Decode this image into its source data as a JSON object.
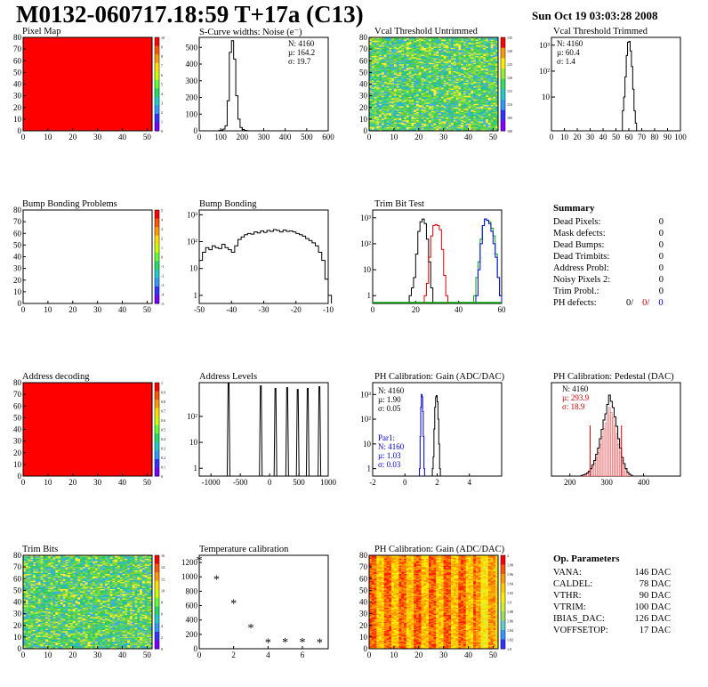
{
  "header": {
    "title": "M0132-060717.18:59 T+17a (C13)",
    "date": "Sun Oct 19 03:03:28 2008"
  },
  "panels": {
    "pixel_map": {
      "title": "Pixel Map"
    },
    "scurve": {
      "title": "S-Curve widths: Noise (e⁻)",
      "stats": [
        "N: 4160",
        "µ: 164.2",
        "σ: 19.7"
      ]
    },
    "vcal_untrimmed": {
      "title": "Vcal Threshold Untrimmed"
    },
    "vcal_trimmed": {
      "title": "Vcal Threshold Trimmed",
      "stats": [
        "N: 4160",
        "µ: 60.4",
        "σ:  1.4"
      ]
    },
    "bump_problems": {
      "title": "Bump Bonding Problems"
    },
    "bump_bonding": {
      "title": "Bump Bonding"
    },
    "trim_bit_test": {
      "title": "Trim Bit Test"
    },
    "summary": {
      "title": "Summary",
      "rows": [
        {
          "label": "Dead Pixels:",
          "value": "0"
        },
        {
          "label": "Mask defects:",
          "value": "0"
        },
        {
          "label": "Dead Bumps:",
          "value": "0"
        },
        {
          "label": "Dead Trimbits:",
          "value": "0"
        },
        {
          "label": "Address Probl:",
          "value": "0"
        },
        {
          "label": "Noisy Pixels 2:",
          "value": "0"
        },
        {
          "label": "Trim Probl.:",
          "value": "0"
        }
      ],
      "ph_label": "PH defects:",
      "ph_values": [
        "0/",
        "0/",
        "0"
      ],
      "ph_colors": [
        "#000000",
        "#cc0000",
        "#0000cc"
      ]
    },
    "address_decoding": {
      "title": "Address decoding"
    },
    "address_levels": {
      "title": "Address Levels"
    },
    "ph_gain": {
      "title": "PH Calibration: Gain (ADC/DAC)",
      "stats": [
        "N: 4160",
        "µ: 1.90",
        "σ: 0.05"
      ],
      "par_stats": [
        "Par1:",
        "N: 4160",
        "µ: 1.03",
        "σ: 0.03"
      ]
    },
    "ph_pedestal": {
      "title": "PH Calibration: Pedestal (DAC)",
      "stats": [
        "N: 4160",
        "µ: 293.9",
        "σ: 18.9"
      ]
    },
    "trim_bits": {
      "title": "Trim Bits"
    },
    "temperature": {
      "title": "Temperature calibration"
    },
    "ph_gain_map": {
      "title": "PH Calibration: Gain (ADC/DAC)"
    },
    "op_params": {
      "title": "Op. Parameters",
      "rows": [
        {
          "label": "VANA:",
          "value": "146 DAC"
        },
        {
          "label": "CALDEL:",
          "value": "78 DAC"
        },
        {
          "label": "VTHR:",
          "value": "90 DAC"
        },
        {
          "label": "VTRIM:",
          "value": "100 DAC"
        },
        {
          "label": "IBIAS_DAC:",
          "value": "126 DAC"
        },
        {
          "label": "VOFFSETOP:",
          "value": "17 DAC"
        }
      ]
    }
  },
  "chart_data": [
    {
      "id": "pixel_map",
      "type": "heatmap",
      "title": "Pixel Map",
      "xlim": [
        0,
        52
      ],
      "ylim": [
        0,
        80
      ],
      "xticks": [
        0,
        10,
        20,
        30,
        40,
        50
      ],
      "yticks": [
        0,
        10,
        20,
        30,
        40,
        50,
        60,
        70,
        80
      ],
      "fill": "uniform",
      "fill_color": "#ff0000",
      "palette_ticks": [
        "10",
        "9",
        "8",
        "7",
        "6",
        "5",
        "4",
        "3",
        "2",
        "1",
        "0"
      ]
    },
    {
      "id": "scurve",
      "type": "bar",
      "title": "S-Curve widths: Noise (e⁻)",
      "xlim": [
        0,
        600
      ],
      "ylim": [
        0,
        560
      ],
      "xticks": [
        0,
        100,
        200,
        300,
        400,
        500,
        600
      ],
      "yticks": [
        0,
        100,
        200,
        300,
        400,
        500
      ],
      "hist": {
        "x0": 90,
        "width": 10,
        "values": [
          2,
          4,
          10,
          30,
          180,
          470,
          540,
          430,
          210,
          70,
          20,
          8,
          3,
          1
        ]
      }
    },
    {
      "id": "vcal_untrimmed",
      "type": "heatmap",
      "title": "Vcal Threshold Untrimmed",
      "xlim": [
        0,
        52
      ],
      "ylim": [
        0,
        80
      ],
      "xticks": [
        0,
        10,
        20,
        30,
        40,
        50
      ],
      "yticks": [
        0,
        10,
        20,
        30,
        40,
        50,
        60,
        70,
        80
      ],
      "fill": "noise",
      "palette": [
        "#33cc55",
        "#55dd66",
        "#22bbbb",
        "#44aaee",
        "#ffee33",
        "#99dd33",
        "#66cc44"
      ],
      "palette_ticks": [
        "135",
        "130",
        "125",
        "120",
        "115",
        "110",
        "105",
        "100"
      ]
    },
    {
      "id": "vcal_trimmed",
      "type": "bar",
      "title": "Vcal Threshold Trimmed",
      "log": true,
      "xlim": [
        0,
        100
      ],
      "ylim": [
        0.5,
        2000
      ],
      "xticks": [
        0,
        10,
        20,
        30,
        40,
        50,
        60,
        70,
        80,
        90,
        100
      ],
      "yticks": [
        "10",
        "10²",
        "10³"
      ],
      "hist": {
        "x0": 55,
        "width": 1,
        "values": [
          3,
          10,
          60,
          400,
          1300,
          1400,
          600,
          150,
          20,
          3,
          1
        ]
      }
    },
    {
      "id": "bump_problems",
      "type": "heatmap",
      "title": "Bump Bonding Problems",
      "xlim": [
        0,
        52
      ],
      "ylim": [
        0,
        80
      ],
      "xticks": [
        0,
        10,
        20,
        30,
        40,
        50
      ],
      "yticks": [
        0,
        10,
        20,
        30,
        40,
        50,
        60,
        70,
        80
      ],
      "fill": "empty",
      "palette_ticks": [
        "5",
        "4",
        "3",
        "2",
        "1",
        "0",
        "-1",
        "-2",
        "-3",
        "-4",
        "-5"
      ]
    },
    {
      "id": "bump_bonding",
      "type": "bar",
      "title": "Bump Bonding",
      "log": true,
      "xlim": [
        -50,
        -10
      ],
      "ylim": [
        0.5,
        1500
      ],
      "xticks": [
        -50,
        -40,
        -30,
        -20,
        -10
      ],
      "yticks": [
        "1",
        "10",
        "10²",
        "10³"
      ],
      "hist": {
        "x0": -50,
        "width": 1,
        "values": [
          20,
          40,
          60,
          50,
          70,
          60,
          55,
          80,
          60,
          50,
          40,
          70,
          120,
          150,
          180,
          200,
          190,
          230,
          210,
          250,
          220,
          260,
          240,
          280,
          260,
          230,
          270,
          240,
          250,
          230,
          200,
          180,
          160,
          130,
          110,
          90,
          70,
          40,
          20,
          4,
          1
        ]
      }
    },
    {
      "id": "trim_bit_test",
      "type": "bar",
      "title": "Trim Bit Test",
      "log": true,
      "xlim": [
        0,
        60
      ],
      "ylim": [
        0.5,
        2000
      ],
      "xticks": [
        0,
        20,
        40,
        60
      ],
      "yticks": [
        "1",
        "10",
        "10²",
        "10³"
      ],
      "series": [
        {
          "name": "",
          "color": "#000000",
          "x0": 17,
          "width": 1,
          "values": [
            1,
            2,
            5,
            40,
            300,
            700,
            900,
            600,
            150,
            20,
            2
          ]
        },
        {
          "name": "",
          "color": "#dd0000",
          "x0": 24,
          "width": 1,
          "values": [
            1,
            3,
            30,
            200,
            500,
            550,
            500,
            350,
            60,
            6,
            1
          ]
        },
        {
          "name": "",
          "color": "#00aa00",
          "x0": 47,
          "width": 1,
          "values": [
            1,
            5,
            20,
            150,
            500,
            900,
            800,
            700,
            400,
            200,
            40,
            5,
            1
          ]
        },
        {
          "name": "",
          "color": "#0000dd",
          "x0": 48,
          "width": 1,
          "values": [
            1,
            10,
            100,
            500,
            900,
            800,
            600,
            300,
            100,
            30,
            5,
            1
          ]
        }
      ],
      "baseline": "#00aa00"
    },
    {
      "id": "address_decoding",
      "type": "heatmap",
      "title": "Address decoding",
      "xlim": [
        0,
        52
      ],
      "ylim": [
        0,
        80
      ],
      "xticks": [
        0,
        10,
        20,
        30,
        40,
        50
      ],
      "yticks": [
        0,
        10,
        20,
        30,
        40,
        50,
        60,
        70,
        80
      ],
      "fill": "uniform",
      "fill_color": "#ff0000",
      "palette_ticks": [
        "1",
        "0.9",
        "0.8",
        "0.7",
        "0.6",
        "0.5",
        "0.4",
        "0.3",
        "0.2",
        "0.1",
        "0"
      ]
    },
    {
      "id": "address_levels",
      "type": "bar",
      "title": "Address Levels",
      "log": true,
      "xlim": [
        -1200,
        1000
      ],
      "ylim": [
        0.5,
        2000
      ],
      "xticks": [
        -1000,
        -500,
        0,
        500,
        1000
      ],
      "yticks": [
        "1",
        "10",
        "10²"
      ],
      "spikes": [
        {
          "x": -700,
          "height": 2000
        },
        {
          "x": -150,
          "height": 1500
        },
        {
          "x": 100,
          "height": 1200
        },
        {
          "x": 300,
          "height": 1300
        },
        {
          "x": 480,
          "height": 1100
        },
        {
          "x": 650,
          "height": 1200
        },
        {
          "x": 850,
          "height": 1400
        }
      ]
    },
    {
      "id": "ph_gain",
      "type": "bar",
      "title": "PH Calibration: Gain (ADC/DAC)",
      "log": true,
      "xlim": [
        -2,
        6
      ],
      "ylim": [
        0.5,
        3000
      ],
      "xticks": [
        -2,
        0,
        2,
        4
      ],
      "yticks": [
        "1",
        "10",
        "10²",
        "10³"
      ],
      "series": [
        {
          "name": "",
          "color": "#000000",
          "x0": 1.7,
          "width": 0.05,
          "values": [
            1,
            3,
            40,
            300,
            800,
            900,
            500,
            100,
            10,
            1
          ]
        },
        {
          "name": "Par1",
          "color": "#0000cc",
          "x0": 0.9,
          "width": 0.04,
          "values": [
            1,
            20,
            300,
            1000,
            800,
            200,
            20,
            1
          ]
        }
      ]
    },
    {
      "id": "ph_pedestal",
      "type": "bar",
      "title": "PH Calibration: Pedestal (DAC)",
      "xlim": [
        150,
        500
      ],
      "ylim": [
        0,
        150
      ],
      "xticks": [
        200,
        300,
        400
      ],
      "yticks": [],
      "hist": {
        "x0": 230,
        "width": 5,
        "values": [
          1,
          2,
          3,
          5,
          8,
          12,
          18,
          25,
          35,
          45,
          60,
          75,
          90,
          100,
          115,
          130,
          120,
          110,
          95,
          80,
          60,
          45,
          30,
          20,
          12,
          6,
          3,
          1
        ]
      },
      "fit_color": "#dd0000",
      "cut_lines": [
        255,
        340
      ]
    },
    {
      "id": "trim_bits",
      "type": "heatmap",
      "title": "Trim Bits",
      "xlim": [
        0,
        52
      ],
      "ylim": [
        0,
        80
      ],
      "xticks": [
        0,
        10,
        20,
        30,
        40,
        50
      ],
      "yticks": [
        0,
        10,
        20,
        30,
        40,
        50,
        60,
        70,
        80
      ],
      "fill": "noise",
      "palette": [
        "#33cc55",
        "#55dd66",
        "#22bbbb",
        "#44aaee",
        "#99dd33",
        "#ffee33",
        "#66cc44"
      ],
      "palette_ticks": [
        "16",
        "14",
        "12",
        "10",
        "8",
        "6",
        "4",
        "2",
        "0"
      ]
    },
    {
      "id": "temperature",
      "type": "scatter",
      "title": "Temperature calibration",
      "xlim": [
        0,
        7.5
      ],
      "ylim": [
        0,
        1300
      ],
      "xticks": [
        0,
        2,
        4,
        6
      ],
      "yticks": [
        0,
        200,
        400,
        600,
        800,
        1000,
        1200
      ],
      "points": [
        [
          0,
          1240
        ],
        [
          1,
          970
        ],
        [
          2,
          640
        ],
        [
          3,
          300
        ],
        [
          4,
          90
        ],
        [
          5,
          100
        ],
        [
          6,
          100
        ],
        [
          7,
          90
        ]
      ]
    },
    {
      "id": "ph_gain_map",
      "type": "heatmap",
      "title": "PH Calibration: Gain (ADC/DAC)",
      "xlim": [
        0,
        52
      ],
      "ylim": [
        0,
        80
      ],
      "xticks": [
        0,
        10,
        20,
        30,
        40,
        50
      ],
      "yticks": [
        0,
        10,
        20,
        30,
        40,
        50,
        60,
        70,
        80
      ],
      "fill": "columns",
      "palette": [
        "#ff2200",
        "#ff6600",
        "#ff9900",
        "#ffcc00",
        "#ffee00",
        "#ddee33"
      ],
      "palette_ticks": [
        "2",
        "1.98",
        "1.96",
        "1.94",
        "1.92",
        "1.9",
        "1.88",
        "1.86",
        "1.84",
        "1.82",
        "1.8"
      ]
    }
  ]
}
